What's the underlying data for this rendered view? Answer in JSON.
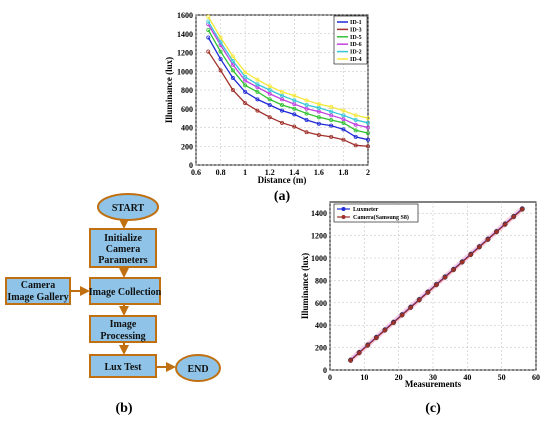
{
  "chart_data": [
    {
      "panel": "(a)",
      "type": "line",
      "xlabel": "Distance (m)",
      "ylabel": "Illuminance (lux)",
      "xlim": [
        0.6,
        2.0
      ],
      "ylim": [
        0,
        1600
      ],
      "xticks": [
        "0.6",
        "0.8",
        "1",
        "1.2",
        "1.4",
        "1.6",
        "1.8",
        "2"
      ],
      "yticks": [
        "0",
        "200",
        "400",
        "600",
        "800",
        "1000",
        "1200",
        "1400",
        "1600"
      ],
      "grid": true,
      "legend": "top-right",
      "x": [
        0.7,
        0.8,
        0.9,
        1.0,
        1.1,
        1.2,
        1.3,
        1.4,
        1.5,
        1.6,
        1.7,
        1.8,
        1.9,
        2.0
      ],
      "series": [
        {
          "name": "ID-1",
          "color": "#1f2bd6",
          "values": [
            1360,
            1130,
            930,
            780,
            700,
            640,
            580,
            540,
            480,
            440,
            420,
            380,
            300,
            270
          ]
        },
        {
          "name": "ID-3",
          "color": "#a0302a",
          "values": [
            1210,
            1010,
            800,
            660,
            580,
            510,
            450,
            410,
            350,
            320,
            300,
            270,
            210,
            200
          ]
        },
        {
          "name": "ID-5",
          "color": "#33c233",
          "values": [
            1440,
            1210,
            1010,
            850,
            780,
            700,
            640,
            600,
            550,
            510,
            480,
            450,
            370,
            340
          ]
        },
        {
          "name": "ID-6",
          "color": "#c040e0",
          "values": [
            1500,
            1280,
            1070,
            900,
            830,
            760,
            700,
            650,
            600,
            570,
            530,
            490,
            430,
            400
          ]
        },
        {
          "name": "ID-2",
          "color": "#36c6d6",
          "values": [
            1530,
            1310,
            1110,
            940,
            860,
            800,
            740,
            690,
            640,
            610,
            570,
            530,
            480,
            450
          ]
        },
        {
          "name": "ID-4",
          "color": "#f5e83a",
          "values": [
            1580,
            1360,
            1160,
            990,
            910,
            840,
            780,
            740,
            690,
            650,
            620,
            580,
            530,
            500
          ]
        }
      ]
    },
    {
      "panel": "(c)",
      "type": "line",
      "xlabel": "Measurements",
      "ylabel": "Illuminance (lux)",
      "xlim": [
        0,
        60
      ],
      "ylim": [
        0,
        1500
      ],
      "xticks": [
        "0",
        "10",
        "20",
        "30",
        "40",
        "50",
        "60"
      ],
      "yticks": [
        "0",
        "200",
        "400",
        "600",
        "800",
        "1000",
        "1200",
        "1400"
      ],
      "grid": true,
      "legend": "top-left",
      "series": [
        {
          "name": "Luxmeter",
          "color": "#1f2bd6",
          "marker": "circle",
          "x_start": 6,
          "x_end": 56,
          "y_start": 90,
          "y_end": 1440
        },
        {
          "name": "Camera(Samsung S8)",
          "color": "#a0302a",
          "marker": "circle",
          "x_start": 6,
          "x_end": 56,
          "y_start": 85,
          "y_end": 1435
        }
      ]
    }
  ],
  "flowchart": {
    "panel": "(b)",
    "start": "START",
    "init": [
      "Initialize",
      "Camera",
      "Parameters"
    ],
    "collect": "Image Collection",
    "gallery": [
      "Camera",
      "Image Gallery"
    ],
    "process": [
      "Image",
      "Processing"
    ],
    "lux": "Lux Test",
    "end": "END"
  },
  "colors": {
    "box": "#8fc4e8",
    "box_border": "#c07010",
    "arrow": "#c07010",
    "panel_c_bg": "#ffffff"
  }
}
